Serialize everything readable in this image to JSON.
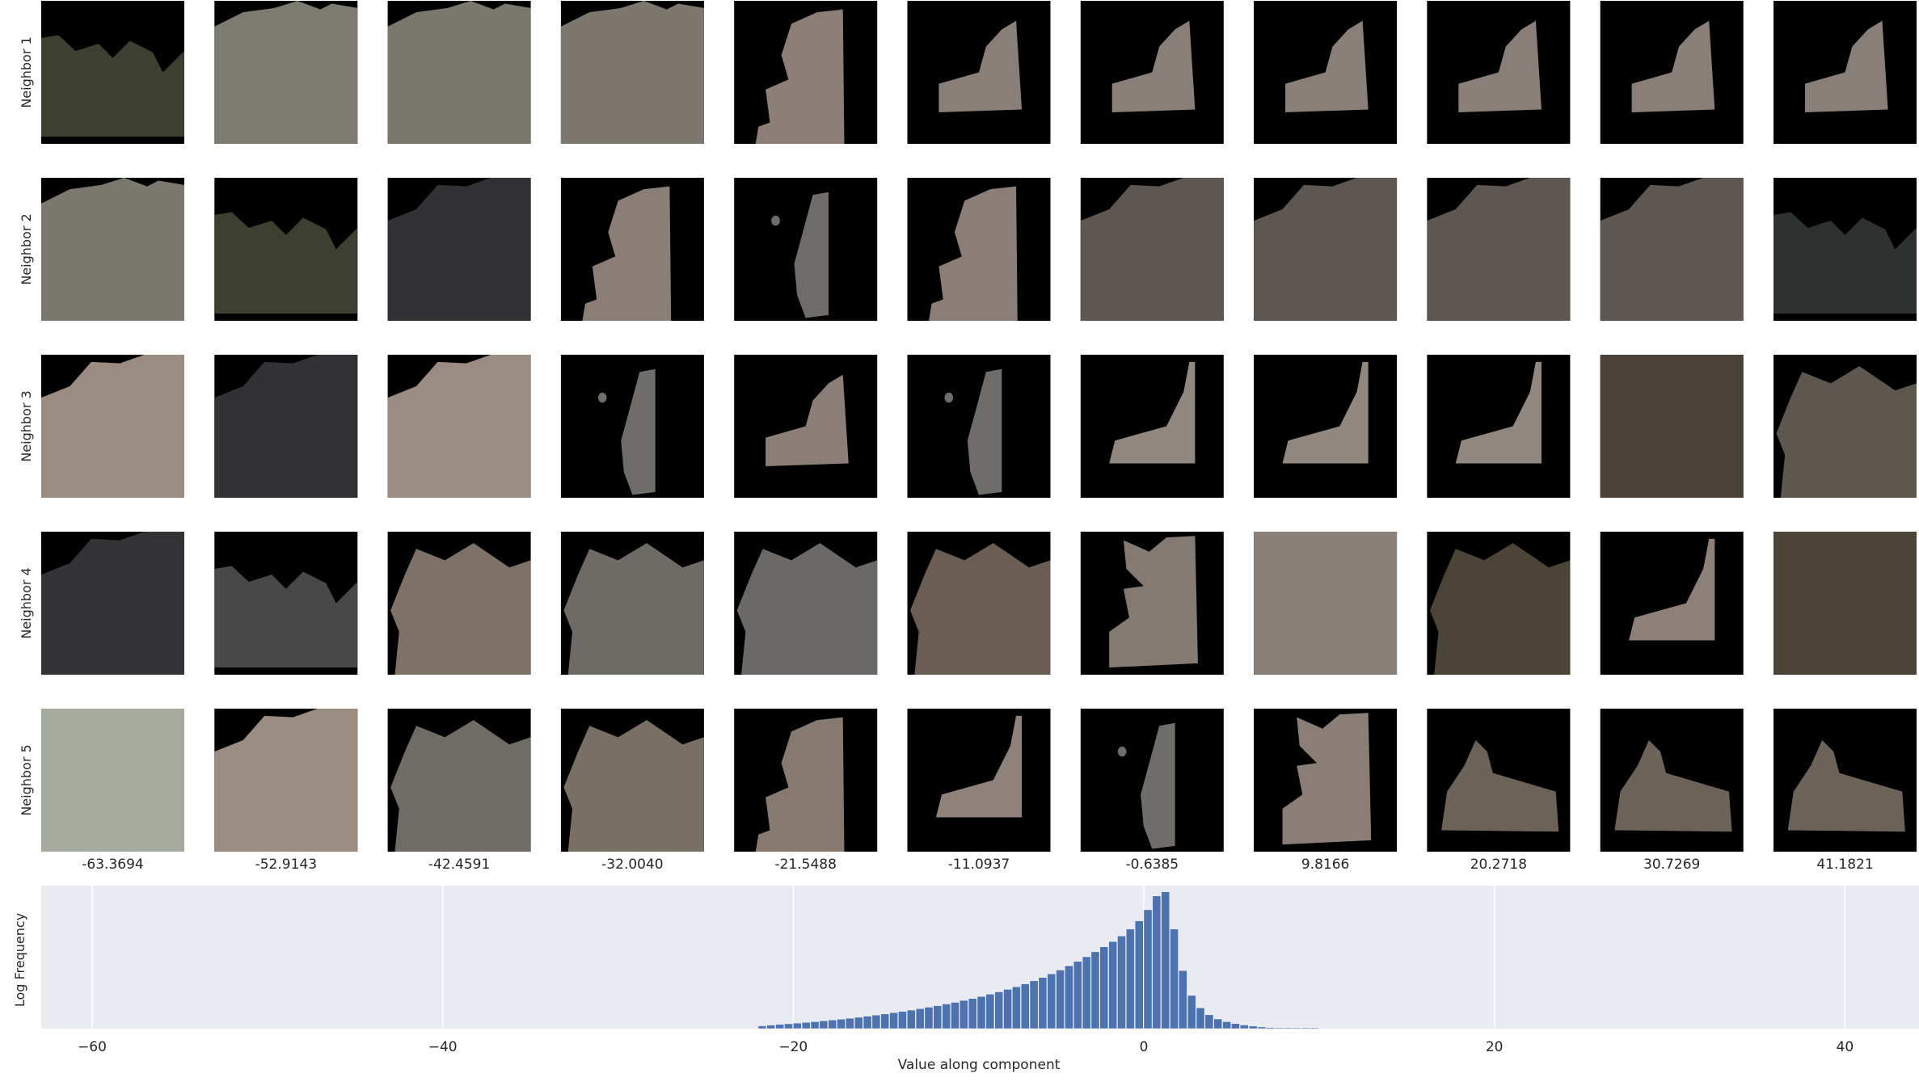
{
  "chart_data": {
    "type": "bar",
    "grid": {
      "rows": 5,
      "columns": 11,
      "row_labels": [
        "Neighbor 1",
        "Neighbor 2",
        "Neighbor 3",
        "Neighbor 4",
        "Neighbor 5"
      ],
      "column_values": [
        "-63.3694",
        "-52.9143",
        "-42.4591",
        "-32.0040",
        "-21.5488",
        "-11.0937",
        "-0.6385",
        "9.8166",
        "20.2718",
        "30.7269",
        "41.1821"
      ],
      "tile_colors": [
        [
          "#3d4030",
          "#7d7a70",
          "#7a776c",
          "#7c786d",
          "#8a7e76",
          "#8a7f78",
          "#8a7f78",
          "#8a7f78",
          "#8a7f78",
          "#8a7f78",
          "#8a7f78"
        ],
        [
          "#7b7870",
          "#3d4030",
          "#323234",
          "#8a7e76",
          "#6f6d69",
          "#8a7e76",
          "#5e5650",
          "#5e5650",
          "#5e5650",
          "#5e5650",
          "#2e3130"
        ],
        [
          "#9a8c80",
          "#323234",
          "#9a8c82",
          "#6f6d69",
          "#8a7e76",
          "#6f6d69",
          "#92877f",
          "#92877f",
          "#92877f",
          "#4a4238",
          "#5e574f"
        ],
        [
          "#333335",
          "#484848",
          "#7e7268",
          "#6e6b66",
          "#6a6966",
          "#6a5e54",
          "#857a72",
          "#8a7f76",
          "#4d4438",
          "#8d8079",
          "#4d4438"
        ],
        [
          "#a5ab9d",
          "#9a8c80",
          "#6f6c66",
          "#7a6f64",
          "#857970",
          "#8e827a",
          "#6f6d69",
          "#8a7e76",
          "#6d6258",
          "#6d6258",
          "#6d6258"
        ]
      ]
    },
    "histogram": {
      "xlabel": "Value along component",
      "ylabel": "Log Frequency",
      "xlim": [
        -65,
        44
      ],
      "xticks": [
        -60,
        -40,
        -20,
        0,
        20,
        40
      ],
      "xtick_labels": [
        "−60",
        "−40",
        "−20",
        "0",
        "20",
        "40"
      ],
      "bin_width": 0.5,
      "bin_start": -22,
      "values": [
        0.02,
        0.025,
        0.03,
        0.035,
        0.04,
        0.045,
        0.05,
        0.056,
        0.062,
        0.068,
        0.075,
        0.082,
        0.09,
        0.098,
        0.106,
        0.115,
        0.124,
        0.134,
        0.144,
        0.155,
        0.166,
        0.178,
        0.19,
        0.204,
        0.218,
        0.233,
        0.249,
        0.266,
        0.284,
        0.303,
        0.324,
        0.346,
        0.37,
        0.396,
        0.424,
        0.454,
        0.486,
        0.52,
        0.556,
        0.592,
        0.63,
        0.67,
        0.72,
        0.78,
        0.86,
        0.96,
        0.99,
        0.72,
        0.42,
        0.24,
        0.15,
        0.1,
        0.07,
        0.05,
        0.036,
        0.026,
        0.018,
        0.012,
        0.008,
        0.005,
        0.003,
        0.002,
        0.001,
        0.0006
      ]
    },
    "colors": {
      "bar": "#4c72b0",
      "plot_background": "#eaeaf2",
      "grid": "#ffffff",
      "mask": "#000000"
    }
  }
}
